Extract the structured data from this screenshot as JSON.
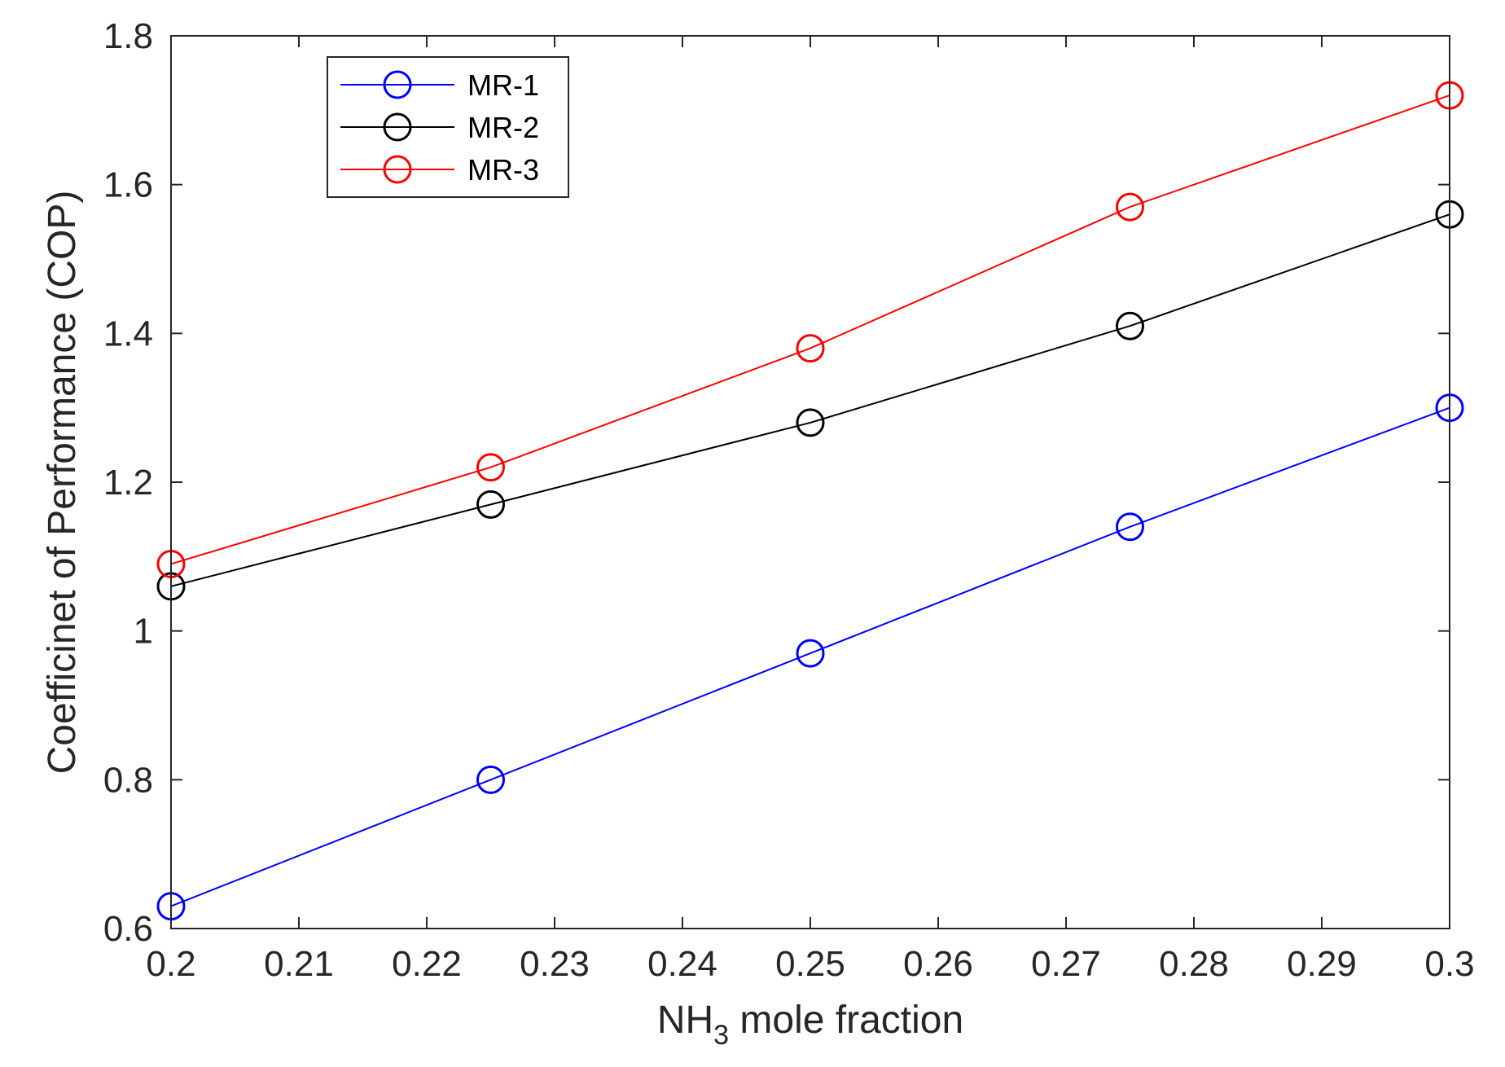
{
  "chart_data": {
    "type": "line",
    "title": "",
    "xlabel": {
      "main": "NH",
      "sub": "3",
      "rest": " mole fraction"
    },
    "ylabel": "Coefficinet of Performance (COP)",
    "xlim": [
      0.2,
      0.3
    ],
    "ylim": [
      0.6,
      1.8
    ],
    "x_ticks": [
      0.2,
      0.21,
      0.22,
      0.23,
      0.24,
      0.25,
      0.26,
      0.27,
      0.28,
      0.29,
      0.3
    ],
    "x_tick_labels": [
      "0.2",
      "0.21",
      "0.22",
      "0.23",
      "0.24",
      "0.25",
      "0.26",
      "0.27",
      "0.28",
      "0.29",
      "0.3"
    ],
    "y_ticks": [
      0.6,
      0.8,
      1.0,
      1.2,
      1.4,
      1.6,
      1.8
    ],
    "y_tick_labels": [
      "0.6",
      "0.8",
      "1",
      "1.2",
      "1.4",
      "1.6",
      "1.8"
    ],
    "grid": false,
    "legend_position": "top-left",
    "marker": "circle-open",
    "x": [
      0.2,
      0.225,
      0.25,
      0.275,
      0.3
    ],
    "series": [
      {
        "name": "MR-1",
        "color": "#0000ff",
        "values": [
          0.63,
          0.8,
          0.97,
          1.14,
          1.3
        ]
      },
      {
        "name": "MR-2",
        "color": "#000000",
        "values": [
          1.06,
          1.17,
          1.28,
          1.41,
          1.56
        ]
      },
      {
        "name": "MR-3",
        "color": "#ff0000",
        "values": [
          1.09,
          1.22,
          1.38,
          1.57,
          1.72
        ]
      }
    ]
  }
}
